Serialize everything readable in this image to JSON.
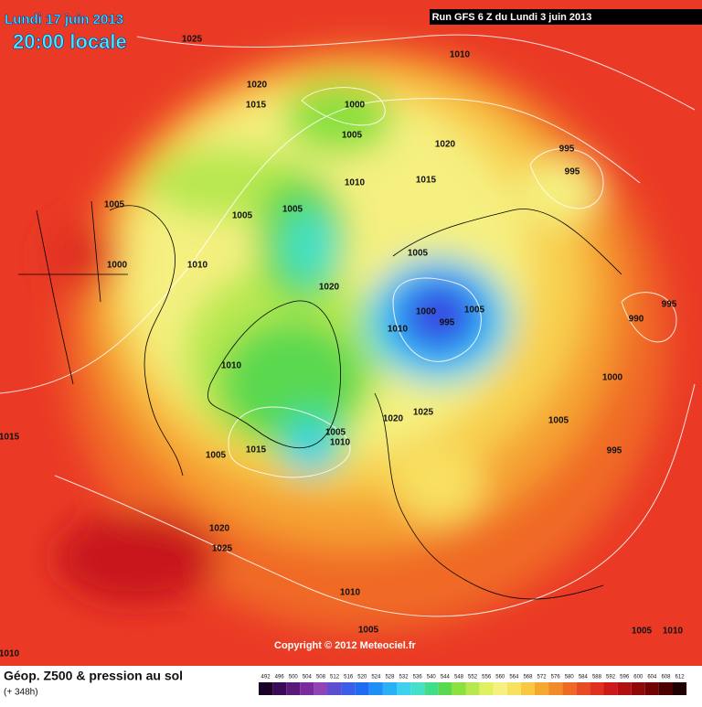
{
  "header": {
    "date": "Lundi 17 juin 2013",
    "time": "20:00 locale",
    "run": "Run GFS 6 Z du Lundi 3 juin 2013"
  },
  "isobar_labels": [
    1025,
    1010,
    1020,
    1015,
    1000,
    1005,
    1020,
    995,
    995,
    1010,
    1015,
    1005,
    1005,
    1005,
    1000,
    1010,
    1005,
    1020,
    995,
    1000,
    1005,
    995,
    990,
    1010,
    1010,
    1000,
    1025,
    1020,
    1005,
    1005,
    1010,
    1015,
    1015,
    1005,
    995,
    1020,
    1025,
    1010,
    1005,
    1005,
    1010,
    1010
  ],
  "copyright": "Copyright © 2012 Meteociel.fr",
  "footer": {
    "title": "Géop. Z500 & pression au sol",
    "lead": "(+ 348h)"
  },
  "scale": {
    "labels": [
      492,
      496,
      500,
      504,
      508,
      512,
      516,
      520,
      524,
      528,
      532,
      536,
      540,
      544,
      548,
      552,
      556,
      560,
      564,
      568,
      572,
      576,
      580,
      584,
      588,
      592,
      596,
      600,
      604,
      608,
      612
    ],
    "colors": [
      "#1a0026",
      "#3b0a55",
      "#5a1a7a",
      "#7a2d9a",
      "#8f45b5",
      "#5a4fd0",
      "#3a5ee8",
      "#1f6cf0",
      "#1f8ef5",
      "#2ab0f5",
      "#3fd0f0",
      "#45e0c8",
      "#40dd8a",
      "#5ad850",
      "#8ce040",
      "#b8e850",
      "#e0f060",
      "#f5f080",
      "#f8e060",
      "#f8c840",
      "#f5a830",
      "#f28a28",
      "#ee6a22",
      "#e84a22",
      "#e03020",
      "#cc1a18",
      "#b01010",
      "#900808",
      "#700404",
      "#4a0000",
      "#200000"
    ]
  }
}
